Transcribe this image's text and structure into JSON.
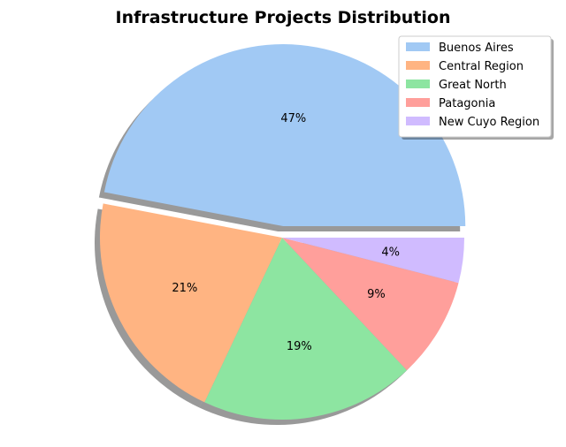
{
  "chart_data": {
    "type": "pie",
    "title": "Infrastructure Projects Distribution",
    "labels": [
      "Buenos Aires",
      "Central Region",
      "Great North",
      "Patagonia",
      "New Cuyo Region"
    ],
    "values": [
      47,
      21,
      19,
      9,
      4
    ],
    "value_labels": [
      "47%",
      "21%",
      "19%",
      "9%",
      "4%"
    ],
    "colors": [
      "#a1c9f4",
      "#ffb482",
      "#8de5a1",
      "#ff9f9b",
      "#d0bbff"
    ],
    "exploded": [
      true,
      false,
      false,
      false,
      false
    ],
    "shadow": true,
    "legend": "top-right"
  }
}
